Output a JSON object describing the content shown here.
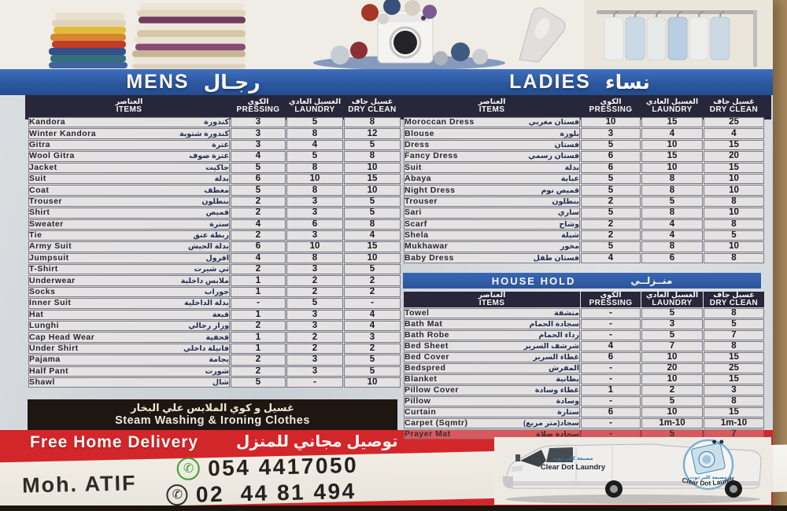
{
  "header": {
    "mens_title_en": "MENS",
    "mens_title_ar": "رجـال",
    "ladies_title_en": "LADIES",
    "ladies_title_ar": "نساء"
  },
  "columns": {
    "items_ar": "العناصر",
    "items_en": "ITEMS",
    "pressing_ar": "الكوي",
    "pressing_en": "PRESSING",
    "laundry_ar": "الغسيل العادي",
    "laundry_en": "LAUNDRY",
    "dry_ar": "غسيل جاف",
    "dry_en": "DRY CLEAN"
  },
  "mens": {
    "rows": [
      {
        "en": "Kandora",
        "ar": "كندورة",
        "pressing": "3",
        "laundry": "5",
        "dry": "8"
      },
      {
        "en": "Winter Kandora",
        "ar": "كندورة شتوية",
        "pressing": "3",
        "laundry": "8",
        "dry": "12"
      },
      {
        "en": "Gitra",
        "ar": "غترة",
        "pressing": "3",
        "laundry": "4",
        "dry": "5"
      },
      {
        "en": "Wool Gitra",
        "ar": "غترة صوف",
        "pressing": "4",
        "laundry": "5",
        "dry": "8"
      },
      {
        "en": "Jacket",
        "ar": "جاكيت",
        "pressing": "5",
        "laundry": "8",
        "dry": "10"
      },
      {
        "en": "Suit",
        "ar": "بدلة",
        "pressing": "6",
        "laundry": "10",
        "dry": "15"
      },
      {
        "en": "Coat",
        "ar": "معطف",
        "pressing": "5",
        "laundry": "8",
        "dry": "10"
      },
      {
        "en": "Trouser",
        "ar": "بنطلون",
        "pressing": "2",
        "laundry": "3",
        "dry": "5"
      },
      {
        "en": "Shirt",
        "ar": "قميص",
        "pressing": "2",
        "laundry": "3",
        "dry": "5"
      },
      {
        "en": "Sweater",
        "ar": "سترة",
        "pressing": "4",
        "laundry": "6",
        "dry": "8"
      },
      {
        "en": "Tie",
        "ar": "ربطة عنق",
        "pressing": "2",
        "laundry": "3",
        "dry": "4"
      },
      {
        "en": "Army Suit",
        "ar": "بدلة الجيش",
        "pressing": "6",
        "laundry": "10",
        "dry": "15"
      },
      {
        "en": "Jumpsuit",
        "ar": "افرول",
        "pressing": "4",
        "laundry": "8",
        "dry": "10"
      },
      {
        "en": "T-Shirt",
        "ar": "تي شيرت",
        "pressing": "2",
        "laundry": "3",
        "dry": "5"
      },
      {
        "en": "Underwear",
        "ar": "ملابس داخلية",
        "pressing": "1",
        "laundry": "2",
        "dry": "2"
      },
      {
        "en": "Socks",
        "ar": "جوراب",
        "pressing": "1",
        "laundry": "2",
        "dry": "2"
      },
      {
        "en": "Inner Suit",
        "ar": "بدلة الداخلية",
        "pressing": "-",
        "laundry": "5",
        "dry": "-"
      },
      {
        "en": "Hat",
        "ar": "قبعة",
        "pressing": "1",
        "laundry": "3",
        "dry": "4"
      },
      {
        "en": "Lunghi",
        "ar": "وزار رجالي",
        "pressing": "2",
        "laundry": "3",
        "dry": "4"
      },
      {
        "en": "Cap Head Wear",
        "ar": "قحفية",
        "pressing": "1",
        "laundry": "2",
        "dry": "3"
      },
      {
        "en": "Under Shirt",
        "ar": "فانيلة داخلي",
        "pressing": "1",
        "laundry": "2",
        "dry": "2"
      },
      {
        "en": "Pajama",
        "ar": "بجامة",
        "pressing": "2",
        "laundry": "3",
        "dry": "5"
      },
      {
        "en": "Half Pant",
        "ar": "شورت",
        "pressing": "2",
        "laundry": "3",
        "dry": "5"
      },
      {
        "en": "Shawl",
        "ar": "شال",
        "pressing": "5",
        "laundry": "-",
        "dry": "10"
      }
    ]
  },
  "ladies": {
    "rows": [
      {
        "en": "Moroccan Dress",
        "ar": "فستان مغربي",
        "pressing": "10",
        "laundry": "15",
        "dry": "25"
      },
      {
        "en": "Blouse",
        "ar": "بلوزة",
        "pressing": "3",
        "laundry": "4",
        "dry": "4"
      },
      {
        "en": "Dress",
        "ar": "فستان",
        "pressing": "5",
        "laundry": "10",
        "dry": "15"
      },
      {
        "en": "Fancy Dress",
        "ar": "فستان رسمي",
        "pressing": "6",
        "laundry": "15",
        "dry": "20"
      },
      {
        "en": "Suit",
        "ar": "بدلة",
        "pressing": "6",
        "laundry": "10",
        "dry": "15"
      },
      {
        "en": "Abaya",
        "ar": "عباية",
        "pressing": "5",
        "laundry": "8",
        "dry": "10"
      },
      {
        "en": "Night Dress",
        "ar": "قميص نوم",
        "pressing": "5",
        "laundry": "8",
        "dry": "10"
      },
      {
        "en": "Trouser",
        "ar": "بنطلون",
        "pressing": "2",
        "laundry": "5",
        "dry": "8"
      },
      {
        "en": "Sari",
        "ar": "ساري",
        "pressing": "5",
        "laundry": "8",
        "dry": "10"
      },
      {
        "en": "Scarf",
        "ar": "وشاح",
        "pressing": "2",
        "laundry": "4",
        "dry": "8"
      },
      {
        "en": "Shela",
        "ar": "شيلة",
        "pressing": "2",
        "laundry": "4",
        "dry": "5"
      },
      {
        "en": "Mukhawar",
        "ar": "مخور",
        "pressing": "5",
        "laundry": "8",
        "dry": "10"
      },
      {
        "en": "Baby Dress",
        "ar": "فستان طفل",
        "pressing": "4",
        "laundry": "6",
        "dry": "8"
      }
    ]
  },
  "household": {
    "title_en": "HOUSE HOLD",
    "title_ar": "منــزلــي",
    "rows": [
      {
        "en": "Towel",
        "ar": "منشفة",
        "pressing": "-",
        "laundry": "5",
        "dry": "8"
      },
      {
        "en": "Bath Mat",
        "ar": "سجادة الحمام",
        "pressing": "-",
        "laundry": "3",
        "dry": "5"
      },
      {
        "en": "Bath Robe",
        "ar": "رداء الحمام",
        "pressing": "-",
        "laundry": "5",
        "dry": "7"
      },
      {
        "en": "Bed Sheet",
        "ar": "شرشف السرير",
        "pressing": "4",
        "laundry": "7",
        "dry": "8"
      },
      {
        "en": "Bed Cover",
        "ar": "غطاء السرير",
        "pressing": "6",
        "laundry": "10",
        "dry": "15"
      },
      {
        "en": "Bedspred",
        "ar": "المفرش",
        "pressing": "-",
        "laundry": "20",
        "dry": "25"
      },
      {
        "en": "Blanket",
        "ar": "بطانية",
        "pressing": "-",
        "laundry": "10",
        "dry": "15"
      },
      {
        "en": "Pillow Cover",
        "ar": "غطاء وسادة",
        "pressing": "1",
        "laundry": "2",
        "dry": "3"
      },
      {
        "en": "Pillow",
        "ar": "وسادة",
        "pressing": "-",
        "laundry": "5",
        "dry": "8"
      },
      {
        "en": "Curtain",
        "ar": "ستارة",
        "pressing": "6",
        "laundry": "10",
        "dry": "15"
      },
      {
        "en": "Carpet (Sqmtr)",
        "ar": "سجاد(متر مربع)",
        "pressing": "-",
        "laundry": "1m-10",
        "dry": "1m-10"
      },
      {
        "en": "Prayer Mat",
        "ar": "سجادة صلاة",
        "pressing": "-",
        "laundry": "5",
        "dry": "7",
        "clipped": true
      }
    ]
  },
  "steam_banner": {
    "ar": "غسيل و كوي الملابس علي البخار",
    "en": "Steam Washing & Ironing Clothes"
  },
  "footer": {
    "free_delivery_en": "Free Home Delivery",
    "free_delivery_ar": "توصيل مجاني للمنزل",
    "contact_name": "Moh. ATIF",
    "whatsapp_number": "054 4417050",
    "phone_number": "02  44 81 494",
    "van_text_en": "Clear Dot Laundry",
    "van_text_ar": "مصبغة كلير دوت"
  },
  "icons": {
    "whatsapp_glyph": "✆",
    "phone_glyph": "✆"
  },
  "colors": {
    "ribbon_blue": "#2757a6",
    "header_navy": "#23233c",
    "row_gray": "#e9e9ec",
    "banner_black": "#19120f",
    "band_red": "#d7232b",
    "logo_blue": "#79b7dc"
  }
}
